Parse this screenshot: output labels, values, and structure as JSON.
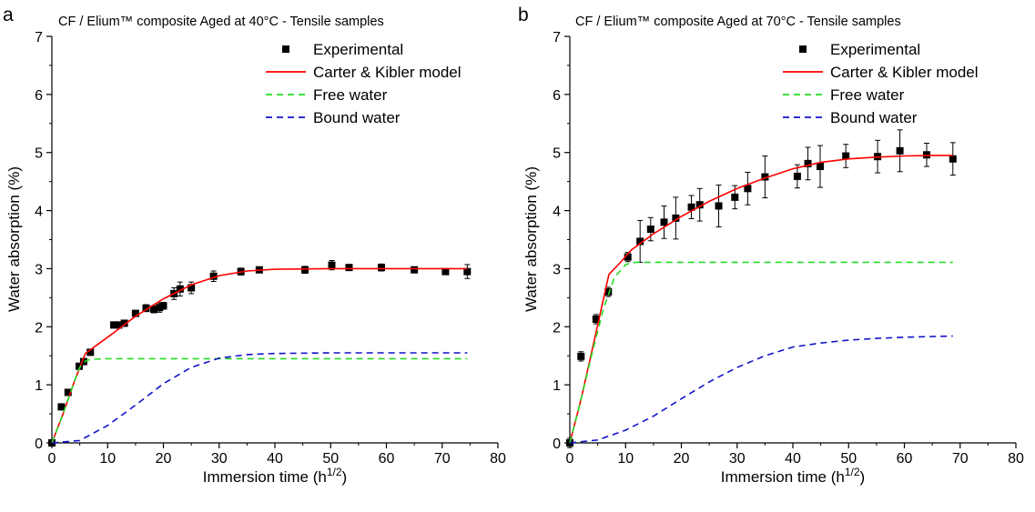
{
  "chart_data": [
    {
      "type": "scatter",
      "panel_letter": "a",
      "title": "CF / Elium™ composite Aged at 40°C - Tensile samples",
      "xlabel": "Immersion time (h",
      "xlabel_sup": "1/2",
      "xlabel_end": ")",
      "ylabel": "Water absorption (%)",
      "xlim": [
        0,
        80
      ],
      "ylim": [
        0,
        7
      ],
      "xticks": [
        "0",
        "10",
        "20",
        "30",
        "40",
        "50",
        "60",
        "70",
        "80"
      ],
      "yticks": [
        "0",
        "1",
        "2",
        "3",
        "4",
        "5",
        "6",
        "7"
      ],
      "grid": false,
      "legend_position": "top-right",
      "series": [
        {
          "name": "Experimental",
          "kind": "points",
          "color": "#000000",
          "x": [
            0,
            1.7,
            2.9,
            4.9,
            5.7,
            6.9,
            11.1,
            12,
            13,
            15,
            16.9,
            18.3,
            19.3,
            20,
            21.9,
            23,
            25,
            29,
            33.9,
            37.2,
            45.4,
            50.2,
            53.3,
            59.1,
            65,
            70.6,
            74.5
          ],
          "y": [
            0,
            0.62,
            0.87,
            1.32,
            1.4,
            1.56,
            2.03,
            2.03,
            2.06,
            2.23,
            2.32,
            2.3,
            2.33,
            2.36,
            2.57,
            2.65,
            2.67,
            2.87,
            2.95,
            2.98,
            2.98,
            3.06,
            3.02,
            3.02,
            2.98,
            2.95,
            2.95
          ],
          "error": [
            0,
            0.05,
            0.04,
            0.05,
            0.05,
            0.04,
            0.04,
            0.04,
            0.04,
            0.05,
            0.06,
            0.06,
            0.08,
            0.06,
            0.1,
            0.12,
            0.1,
            0.09,
            0.06,
            0.05,
            0.06,
            0.08,
            0.04,
            0.06,
            0.05,
            0.03,
            0.12
          ]
        },
        {
          "name": "Carter & Kibler model",
          "kind": "line",
          "color": "#ff0000",
          "dash": "",
          "x": [
            0,
            2,
            4,
            6,
            8,
            10,
            15,
            20,
            25,
            30,
            35,
            40,
            50,
            60,
            70,
            74.5
          ],
          "y": [
            0,
            0.5,
            1.05,
            1.54,
            1.68,
            1.82,
            2.18,
            2.48,
            2.72,
            2.88,
            2.96,
            2.99,
            3.0,
            3.0,
            3.0,
            3.0
          ]
        },
        {
          "name": "Free water",
          "kind": "line",
          "color": "#22dd22",
          "dash": "7,5",
          "x": [
            0,
            2,
            4,
            5,
            6,
            7,
            10,
            20,
            40,
            60,
            74.5
          ],
          "y": [
            0,
            0.5,
            1.05,
            1.3,
            1.41,
            1.44,
            1.45,
            1.45,
            1.45,
            1.45,
            1.45
          ]
        },
        {
          "name": "Bound water",
          "kind": "line",
          "color": "#1111cc",
          "dash": "7,5",
          "x": [
            0,
            5,
            10,
            15,
            20,
            25,
            30,
            35,
            40,
            50,
            60,
            74.5
          ],
          "y": [
            0,
            0.04,
            0.3,
            0.65,
            1.02,
            1.3,
            1.46,
            1.52,
            1.54,
            1.55,
            1.55,
            1.55
          ]
        }
      ]
    },
    {
      "type": "scatter",
      "panel_letter": "b",
      "title": "CF / Elium™ composite Aged at 70°C - Tensile samples",
      "xlabel": "Immersion time (h",
      "xlabel_sup": "1/2",
      "xlabel_end": ")",
      "ylabel": "Water absorption (%)",
      "xlim": [
        0,
        80
      ],
      "ylim": [
        0,
        7
      ],
      "xticks": [
        "0",
        "10",
        "20",
        "30",
        "40",
        "50",
        "60",
        "70",
        "80"
      ],
      "yticks": [
        "0",
        "1",
        "2",
        "3",
        "4",
        "5",
        "6",
        "7"
      ],
      "grid": false,
      "legend_position": "top-right",
      "series": [
        {
          "name": "Experimental",
          "kind": "points",
          "color": "#000000",
          "x": [
            0,
            2,
            4.7,
            6.9,
            10.4,
            12.6,
            14.5,
            16.9,
            19,
            21.8,
            23.3,
            26.7,
            29.6,
            31.9,
            35,
            40.8,
            42.7,
            44.9,
            49.5,
            55.2,
            59.2,
            64,
            68.7
          ],
          "y": [
            0,
            1.49,
            2.13,
            2.6,
            3.2,
            3.47,
            3.68,
            3.8,
            3.87,
            4.06,
            4.1,
            4.08,
            4.23,
            4.38,
            4.58,
            4.59,
            4.81,
            4.76,
            4.94,
            4.93,
            5.03,
            4.96,
            4.89
          ]
        },
        {
          "name": "Carter & Kibler model",
          "kind": "line",
          "color": "#ff0000",
          "dash": "",
          "x": [
            0,
            2,
            4,
            5.5,
            7,
            9,
            11,
            15,
            20,
            25,
            30,
            35,
            40,
            45,
            50,
            55,
            60,
            65,
            68.7
          ],
          "y": [
            0,
            0.75,
            1.6,
            2.25,
            2.9,
            3.1,
            3.32,
            3.6,
            3.9,
            4.16,
            4.38,
            4.56,
            4.72,
            4.83,
            4.89,
            4.92,
            4.94,
            4.95,
            4.95
          ]
        },
        {
          "name": "Free water",
          "kind": "line",
          "color": "#22dd22",
          "dash": "7,5",
          "x": [
            0,
            2,
            4,
            6,
            8,
            10,
            11,
            12,
            20,
            40,
            68.7
          ],
          "y": [
            0,
            0.75,
            1.55,
            2.3,
            2.85,
            3.07,
            3.1,
            3.11,
            3.11,
            3.11,
            3.11
          ]
        },
        {
          "name": "Bound water",
          "kind": "line",
          "color": "#1111cc",
          "dash": "7,5",
          "x": [
            0,
            5,
            10,
            15,
            20,
            25,
            30,
            35,
            40,
            45,
            50,
            55,
            60,
            68.7
          ],
          "y": [
            0,
            0.05,
            0.22,
            0.46,
            0.76,
            1.05,
            1.3,
            1.5,
            1.65,
            1.72,
            1.77,
            1.8,
            1.82,
            1.84
          ]
        }
      ]
    }
  ]
}
